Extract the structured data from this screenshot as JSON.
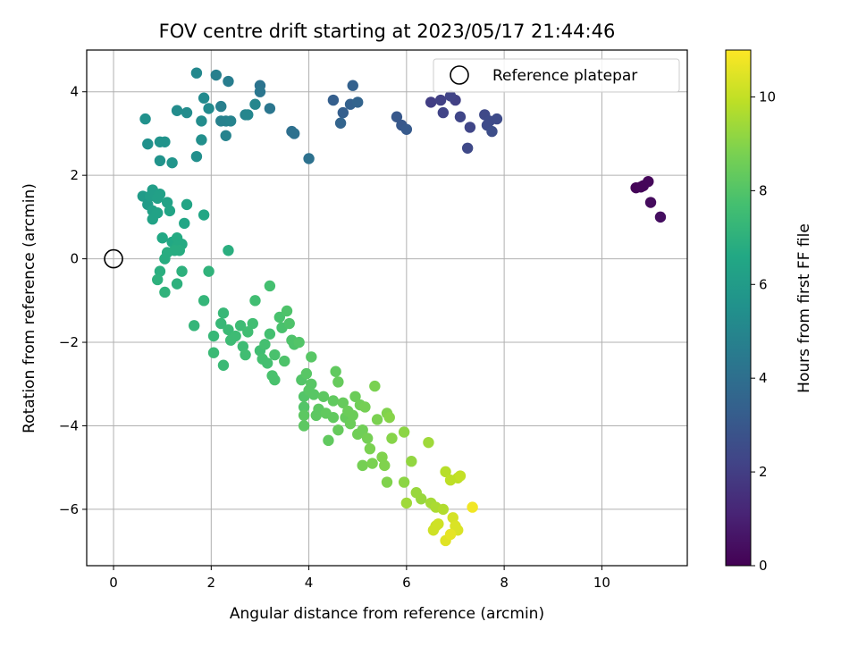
{
  "chart_data": {
    "type": "scatter",
    "title": "FOV centre drift starting at 2023/05/17 21:44:46",
    "xlabel": "Angular distance from reference (arcmin)",
    "ylabel": "Rotation from reference (arcmin)",
    "xlim": [
      -0.55,
      11.75
    ],
    "ylim": [
      -7.35,
      5.0
    ],
    "xticks": [
      "0",
      "2",
      "4",
      "6",
      "8",
      "10"
    ],
    "yticks": [
      "−6",
      "−4",
      "−2",
      "0",
      "2",
      "4"
    ],
    "grid": true,
    "legend": {
      "placement": "top-right",
      "entries": [
        {
          "label": "Reference platepar",
          "marker": "open-circle"
        }
      ]
    },
    "colorbar": {
      "label": "Hours from first FF file",
      "min": 0,
      "max": 11,
      "ticks": [
        "0",
        "2",
        "4",
        "6",
        "8",
        "10"
      ],
      "colormap": "viridis"
    },
    "reference_point": {
      "x": 0,
      "y": 0
    },
    "points": [
      [
        10.7,
        1.7,
        0.1
      ],
      [
        10.85,
        1.75,
        0.2
      ],
      [
        10.95,
        1.85,
        0.2
      ],
      [
        11.0,
        1.35,
        0.3
      ],
      [
        11.2,
        1.0,
        0.4
      ],
      [
        10.8,
        1.72,
        0.15
      ],
      [
        6.5,
        3.75,
        2.0
      ],
      [
        6.7,
        3.8,
        2.1
      ],
      [
        7.0,
        3.8,
        2.1
      ],
      [
        6.9,
        3.9,
        2.2
      ],
      [
        6.75,
        3.5,
        2.2
      ],
      [
        7.1,
        3.4,
        2.3
      ],
      [
        7.3,
        3.15,
        2.3
      ],
      [
        7.25,
        2.65,
        2.4
      ],
      [
        7.6,
        3.45,
        2.4
      ],
      [
        7.7,
        3.3,
        2.5
      ],
      [
        7.65,
        3.2,
        2.5
      ],
      [
        7.85,
        3.35,
        2.5
      ],
      [
        7.75,
        3.05,
        2.6
      ],
      [
        5.8,
        3.4,
        3.0
      ],
      [
        5.9,
        3.2,
        3.0
      ],
      [
        6.0,
        3.1,
        3.1
      ],
      [
        4.5,
        3.8,
        3.3
      ],
      [
        4.7,
        3.5,
        3.3
      ],
      [
        4.85,
        3.7,
        3.4
      ],
      [
        4.9,
        4.15,
        3.4
      ],
      [
        5.0,
        3.75,
        3.5
      ],
      [
        4.65,
        3.25,
        3.5
      ],
      [
        3.65,
        3.05,
        4.0
      ],
      [
        3.7,
        3.0,
        4.1
      ],
      [
        4.0,
        2.4,
        4.1
      ],
      [
        3.0,
        4.15,
        4.2
      ],
      [
        3.0,
        4.0,
        4.3
      ],
      [
        3.2,
        3.6,
        4.3
      ],
      [
        2.35,
        4.25,
        4.6
      ],
      [
        2.1,
        4.4,
        4.7
      ],
      [
        2.2,
        3.65,
        4.7
      ],
      [
        2.2,
        3.3,
        4.8
      ],
      [
        2.3,
        3.3,
        4.8
      ],
      [
        2.4,
        3.3,
        4.9
      ],
      [
        2.3,
        2.95,
        4.9
      ],
      [
        2.7,
        3.45,
        4.9
      ],
      [
        2.75,
        3.45,
        5.0
      ],
      [
        2.9,
        3.7,
        5.0
      ],
      [
        1.7,
        4.45,
        5.1
      ],
      [
        1.85,
        3.85,
        5.2
      ],
      [
        1.95,
        3.6,
        5.2
      ],
      [
        1.5,
        3.5,
        5.3
      ],
      [
        1.3,
        3.55,
        5.3
      ],
      [
        1.8,
        3.3,
        5.3
      ],
      [
        1.8,
        2.85,
        5.4
      ],
      [
        1.7,
        2.45,
        5.4
      ],
      [
        0.65,
        3.35,
        5.5
      ],
      [
        0.7,
        2.75,
        5.5
      ],
      [
        0.95,
        2.8,
        5.6
      ],
      [
        1.05,
        2.8,
        5.6
      ],
      [
        0.95,
        2.35,
        5.6
      ],
      [
        1.2,
        2.3,
        5.7
      ],
      [
        0.6,
        1.5,
        6.0
      ],
      [
        0.7,
        1.3,
        6.0
      ],
      [
        0.75,
        1.5,
        6.1
      ],
      [
        0.8,
        1.65,
        6.1
      ],
      [
        0.85,
        1.55,
        6.1
      ],
      [
        0.9,
        1.45,
        6.2
      ],
      [
        0.95,
        1.55,
        6.2
      ],
      [
        0.8,
        1.15,
        6.2
      ],
      [
        0.9,
        1.1,
        6.3
      ],
      [
        0.8,
        0.95,
        6.3
      ],
      [
        1.1,
        1.35,
        6.3
      ],
      [
        1.15,
        1.15,
        6.4
      ],
      [
        1.5,
        1.3,
        6.4
      ],
      [
        1.45,
        0.85,
        6.5
      ],
      [
        1.85,
        1.05,
        6.5
      ],
      [
        1.0,
        0.5,
        6.6
      ],
      [
        1.2,
        0.4,
        6.6
      ],
      [
        1.3,
        0.5,
        6.7
      ],
      [
        1.4,
        0.35,
        6.7
      ],
      [
        1.3,
        0.3,
        6.7
      ],
      [
        1.35,
        0.2,
        6.8
      ],
      [
        1.1,
        0.15,
        6.8
      ],
      [
        1.05,
        0.0,
        6.8
      ],
      [
        1.25,
        0.2,
        6.8
      ],
      [
        2.35,
        0.2,
        6.9
      ],
      [
        0.95,
        -0.3,
        6.9
      ],
      [
        0.9,
        -0.5,
        7.0
      ],
      [
        1.4,
        -0.3,
        7.0
      ],
      [
        1.3,
        -0.6,
        7.0
      ],
      [
        1.05,
        -0.8,
        7.1
      ],
      [
        1.95,
        -0.3,
        7.1
      ],
      [
        1.85,
        -1.0,
        7.2
      ],
      [
        1.65,
        -1.6,
        7.2
      ],
      [
        2.25,
        -1.3,
        7.3
      ],
      [
        2.2,
        -1.55,
        7.3
      ],
      [
        2.05,
        -1.85,
        7.3
      ],
      [
        2.05,
        -2.25,
        7.4
      ],
      [
        2.25,
        -2.55,
        7.4
      ],
      [
        2.35,
        -1.7,
        7.4
      ],
      [
        2.4,
        -1.95,
        7.5
      ],
      [
        2.5,
        -1.85,
        7.5
      ],
      [
        2.6,
        -1.6,
        7.5
      ],
      [
        2.65,
        -2.1,
        7.5
      ],
      [
        2.7,
        -2.3,
        7.6
      ],
      [
        2.75,
        -1.75,
        7.6
      ],
      [
        2.85,
        -1.55,
        7.6
      ],
      [
        2.9,
        -1.0,
        7.6
      ],
      [
        3.0,
        -2.2,
        7.6
      ],
      [
        3.05,
        -2.4,
        7.7
      ],
      [
        3.1,
        -2.05,
        7.7
      ],
      [
        3.15,
        -2.5,
        7.7
      ],
      [
        3.2,
        -1.8,
        7.7
      ],
      [
        3.2,
        -0.65,
        7.7
      ],
      [
        3.25,
        -2.8,
        7.8
      ],
      [
        3.3,
        -2.9,
        7.8
      ],
      [
        3.3,
        -2.3,
        7.8
      ],
      [
        3.4,
        -1.4,
        7.8
      ],
      [
        3.45,
        -1.65,
        7.8
      ],
      [
        3.5,
        -2.45,
        7.9
      ],
      [
        3.55,
        -1.25,
        7.9
      ],
      [
        3.6,
        -1.55,
        7.9
      ],
      [
        3.65,
        -1.95,
        7.9
      ],
      [
        3.7,
        -2.05,
        7.9
      ],
      [
        3.8,
        -2.0,
        8.0
      ],
      [
        3.85,
        -2.9,
        8.0
      ],
      [
        3.9,
        -3.3,
        8.0
      ],
      [
        3.9,
        -3.55,
        8.0
      ],
      [
        3.95,
        -2.75,
        8.1
      ],
      [
        4.0,
        -3.15,
        8.1
      ],
      [
        4.05,
        -2.35,
        8.1
      ],
      [
        4.05,
        -3.0,
        8.1
      ],
      [
        4.1,
        -3.25,
        8.1
      ],
      [
        4.15,
        -3.75,
        8.2
      ],
      [
        4.2,
        -3.6,
        8.2
      ],
      [
        3.9,
        -3.75,
        8.2
      ],
      [
        3.9,
        -4.0,
        8.2
      ],
      [
        4.3,
        -3.3,
        8.2
      ],
      [
        4.35,
        -3.7,
        8.3
      ],
      [
        4.4,
        -4.35,
        8.3
      ],
      [
        4.5,
        -3.8,
        8.3
      ],
      [
        4.5,
        -3.4,
        8.3
      ],
      [
        4.55,
        -2.7,
        8.3
      ],
      [
        4.6,
        -2.95,
        8.4
      ],
      [
        4.6,
        -4.1,
        8.4
      ],
      [
        4.7,
        -3.45,
        8.4
      ],
      [
        4.75,
        -3.8,
        8.4
      ],
      [
        4.8,
        -3.65,
        8.5
      ],
      [
        4.85,
        -3.95,
        8.5
      ],
      [
        4.9,
        -3.75,
        8.5
      ],
      [
        4.95,
        -3.3,
        8.5
      ],
      [
        5.0,
        -4.2,
        8.6
      ],
      [
        5.05,
        -3.5,
        8.6
      ],
      [
        5.1,
        -4.1,
        8.6
      ],
      [
        5.1,
        -4.95,
        8.7
      ],
      [
        5.15,
        -3.55,
        8.7
      ],
      [
        5.2,
        -4.3,
        8.7
      ],
      [
        5.25,
        -4.55,
        8.8
      ],
      [
        5.3,
        -4.9,
        8.8
      ],
      [
        5.35,
        -3.05,
        8.8
      ],
      [
        5.4,
        -3.85,
        8.8
      ],
      [
        5.5,
        -4.75,
        8.9
      ],
      [
        5.55,
        -4.95,
        8.9
      ],
      [
        5.6,
        -5.35,
        8.9
      ],
      [
        5.6,
        -3.7,
        8.9
      ],
      [
        5.65,
        -3.8,
        9.0
      ],
      [
        5.7,
        -4.3,
        9.0
      ],
      [
        5.95,
        -4.15,
        9.1
      ],
      [
        5.95,
        -5.35,
        9.1
      ],
      [
        6.1,
        -4.85,
        9.2
      ],
      [
        6.2,
        -5.6,
        9.3
      ],
      [
        6.3,
        -5.75,
        9.3
      ],
      [
        6.45,
        -4.4,
        9.4
      ],
      [
        6.0,
        -5.85,
        9.4
      ],
      [
        6.5,
        -5.85,
        9.5
      ],
      [
        6.6,
        -5.95,
        9.6
      ],
      [
        6.75,
        -6.0,
        9.7
      ],
      [
        6.8,
        -5.1,
        9.8
      ],
      [
        6.9,
        -5.3,
        9.9
      ],
      [
        7.05,
        -5.25,
        9.9
      ],
      [
        7.1,
        -5.2,
        10.0
      ],
      [
        6.6,
        -6.4,
        10.1
      ],
      [
        6.65,
        -6.35,
        10.2
      ],
      [
        6.55,
        -6.5,
        10.2
      ],
      [
        6.95,
        -6.2,
        10.3
      ],
      [
        7.0,
        -6.4,
        10.4
      ],
      [
        7.05,
        -6.5,
        10.4
      ],
      [
        6.8,
        -6.75,
        10.5
      ],
      [
        6.9,
        -6.6,
        10.6
      ],
      [
        7.35,
        -5.95,
        10.8
      ]
    ]
  }
}
